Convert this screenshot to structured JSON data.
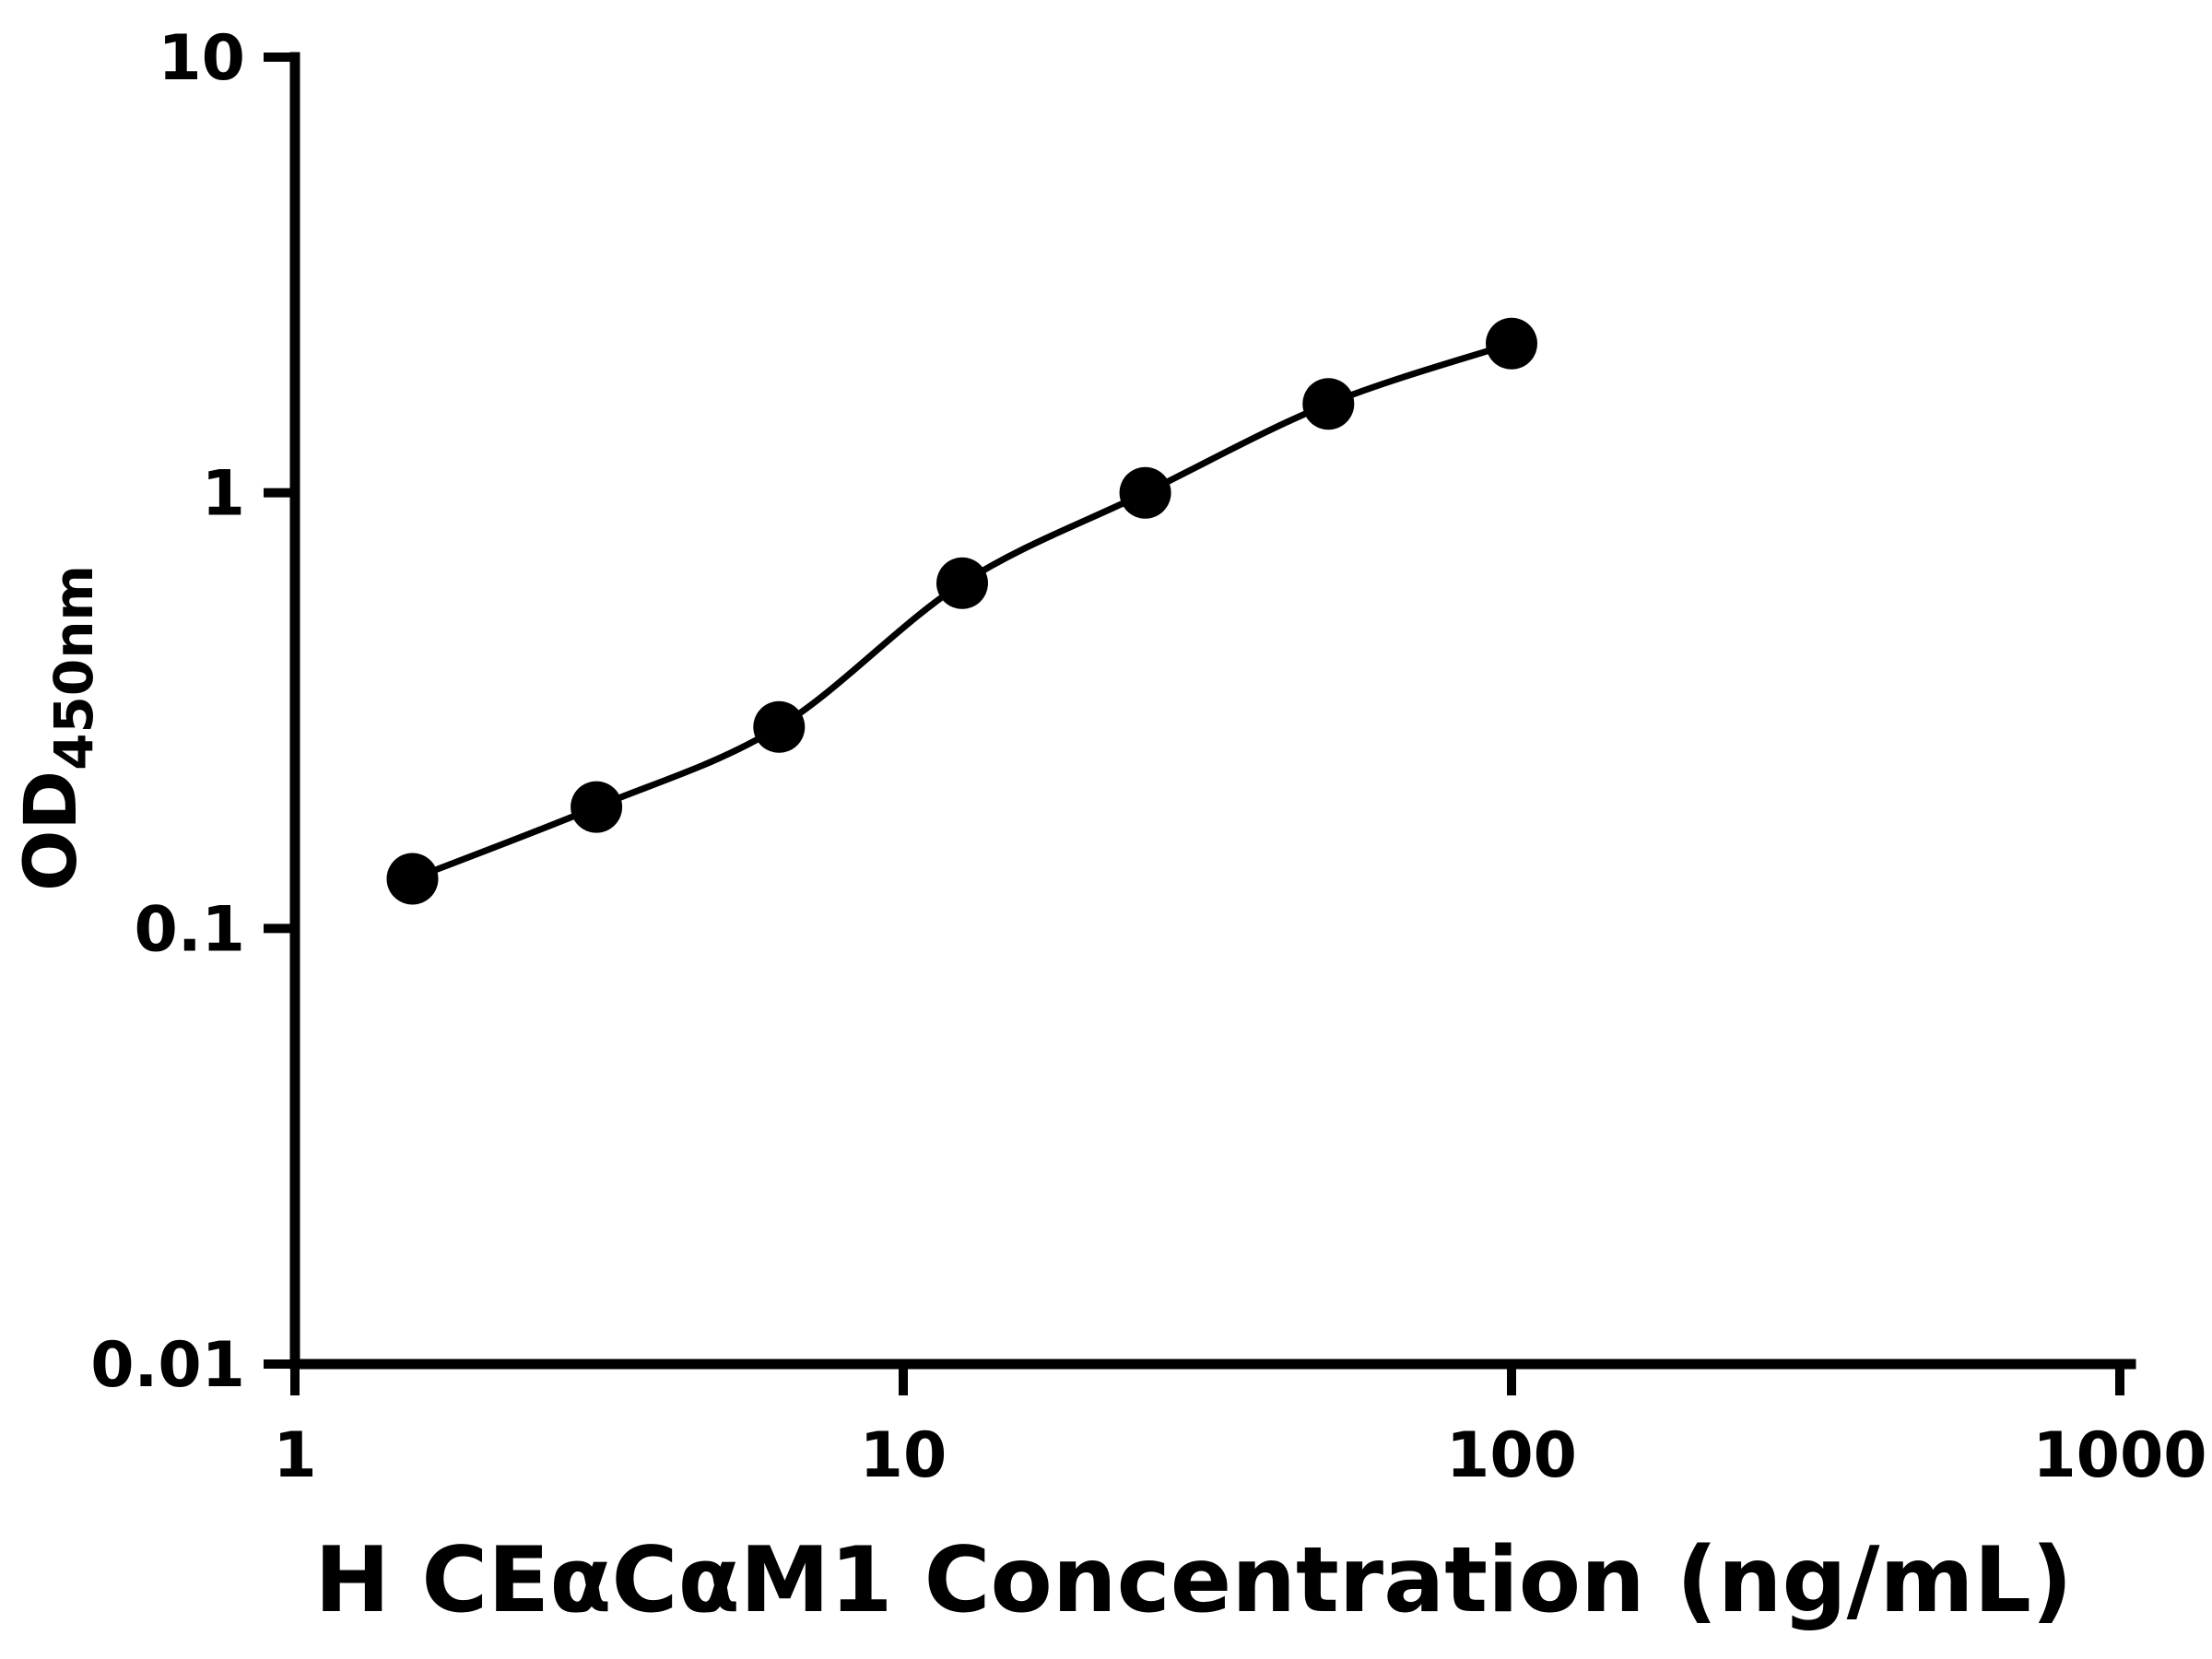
{
  "chart_data": {
    "type": "scatter",
    "title": "",
    "xlabel": "H CEαCαM1 Concentration (ng/mL)",
    "ylabel": "OD450nm",
    "ylabel_main": "OD",
    "ylabel_sub": "450nm",
    "xscale": "log",
    "yscale": "log",
    "xlim": [
      1,
      1000
    ],
    "ylim": [
      0.01,
      10
    ],
    "x_tick_values": [
      1,
      10,
      100,
      1000
    ],
    "x_tick_labels": [
      "1",
      "10",
      "100",
      "1000"
    ],
    "y_tick_values": [
      0.01,
      0.1,
      1,
      10
    ],
    "y_tick_labels": [
      "0.01",
      "0.1",
      "1",
      "10"
    ],
    "grid": false,
    "legend": null,
    "series": [
      {
        "marker": "filled-circle",
        "color": "#000000",
        "x": [
          1.56,
          3.13,
          6.25,
          12.5,
          25,
          50,
          100
        ],
        "y": [
          0.13,
          0.19,
          0.29,
          0.62,
          1.0,
          1.6,
          2.2
        ],
        "fit": "smooth sigmoidal curve through points"
      }
    ],
    "colors": {
      "axis": "#000000",
      "marker": "#000000",
      "curve": "#000000",
      "background": "#ffffff"
    }
  }
}
